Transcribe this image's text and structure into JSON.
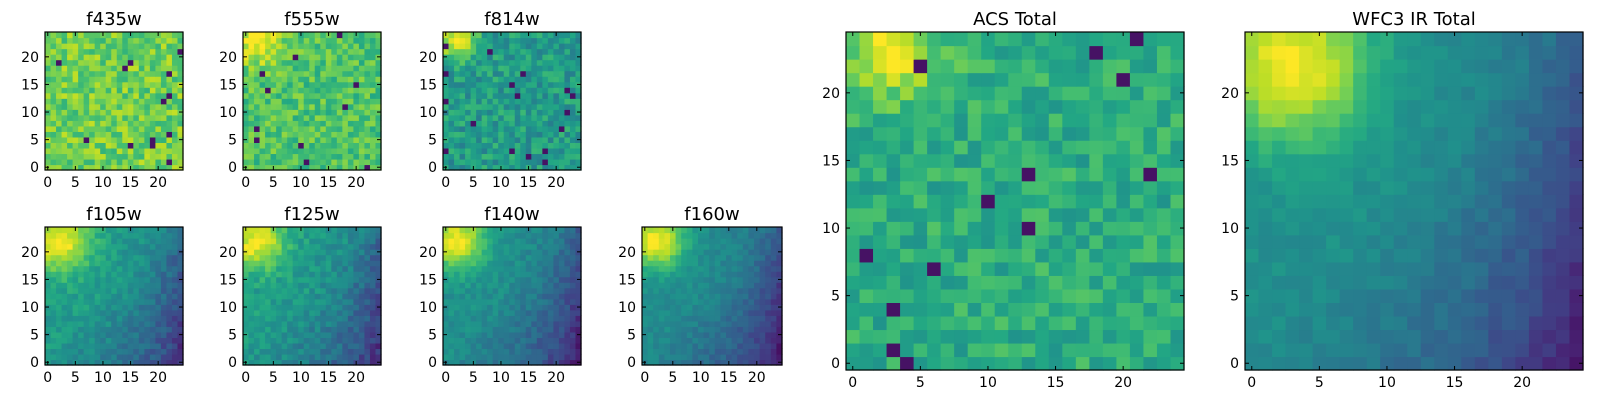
{
  "chart_data": [
    {
      "type": "heatmap",
      "id": "f435w",
      "title": "f435w",
      "colormap": "viridis",
      "grid_size": 25,
      "xlim": [
        -0.5,
        24.5
      ],
      "ylim": [
        -0.5,
        24.5
      ],
      "xticks": [
        0,
        5,
        10,
        15,
        20
      ],
      "yticks": [
        0,
        5,
        10,
        15,
        20
      ],
      "xtick_labels": [
        "0",
        "5",
        "10",
        "15",
        "20"
      ],
      "ytick_labels": [
        "0",
        "5",
        "10",
        "15",
        "20"
      ],
      "pattern": "noise",
      "mean_level": 0.78,
      "noise_level": 0.13,
      "peak": null
    },
    {
      "type": "heatmap",
      "id": "f555w",
      "title": "f555w",
      "colormap": "viridis",
      "grid_size": 25,
      "xlim": [
        -0.5,
        24.5
      ],
      "ylim": [
        -0.5,
        24.5
      ],
      "xticks": [
        0,
        5,
        10,
        15,
        20
      ],
      "yticks": [
        0,
        5,
        10,
        15,
        20
      ],
      "xtick_labels": [
        "0",
        "5",
        "10",
        "15",
        "20"
      ],
      "ytick_labels": [
        "0",
        "5",
        "10",
        "15",
        "20"
      ],
      "pattern": "noise_with_peak",
      "mean_level": 0.72,
      "noise_level": 0.12,
      "peak": {
        "x": 2,
        "y": 23,
        "amplitude": 0.3,
        "sigma": 3
      }
    },
    {
      "type": "heatmap",
      "id": "f814w",
      "title": "f814w",
      "colormap": "viridis",
      "grid_size": 25,
      "xlim": [
        -0.5,
        24.5
      ],
      "ylim": [
        -0.5,
        24.5
      ],
      "xticks": [
        0,
        5,
        10,
        15,
        20
      ],
      "yticks": [
        0,
        5,
        10,
        15,
        20
      ],
      "xtick_labels": [
        "0",
        "5",
        "10",
        "15",
        "20"
      ],
      "ytick_labels": [
        "0",
        "5",
        "10",
        "15",
        "20"
      ],
      "pattern": "noise_with_peak",
      "mean_level": 0.55,
      "noise_level": 0.13,
      "peak": {
        "x": 2,
        "y": 23,
        "amplitude": 0.45,
        "sigma": 2.5
      }
    },
    {
      "type": "heatmap",
      "id": "f105w",
      "title": "f105w",
      "colormap": "viridis",
      "grid_size": 25,
      "xlim": [
        -0.5,
        24.5
      ],
      "ylim": [
        -0.5,
        24.5
      ],
      "xticks": [
        0,
        5,
        10,
        15,
        20
      ],
      "yticks": [
        0,
        5,
        10,
        15,
        20
      ],
      "xtick_labels": [
        "0",
        "5",
        "10",
        "15",
        "20"
      ],
      "ytick_labels": [
        "0",
        "5",
        "10",
        "15",
        "20"
      ],
      "pattern": "gradient_with_peak",
      "mean_level": 0.55,
      "noise_level": 0.07,
      "peak": {
        "x": 2,
        "y": 22,
        "amplitude": 0.45,
        "sigma": 4
      }
    },
    {
      "type": "heatmap",
      "id": "f125w",
      "title": "f125w",
      "colormap": "viridis",
      "grid_size": 25,
      "xlim": [
        -0.5,
        24.5
      ],
      "ylim": [
        -0.5,
        24.5
      ],
      "xticks": [
        0,
        5,
        10,
        15,
        20
      ],
      "yticks": [
        0,
        5,
        10,
        15,
        20
      ],
      "xtick_labels": [
        "0",
        "5",
        "10",
        "15",
        "20"
      ],
      "ytick_labels": [
        "0",
        "5",
        "10",
        "15",
        "20"
      ],
      "pattern": "gradient_with_peak",
      "mean_level": 0.55,
      "noise_level": 0.08,
      "peak": {
        "x": 2,
        "y": 22,
        "amplitude": 0.45,
        "sigma": 3.5
      }
    },
    {
      "type": "heatmap",
      "id": "f140w",
      "title": "f140w",
      "colormap": "viridis",
      "grid_size": 25,
      "xlim": [
        -0.5,
        24.5
      ],
      "ylim": [
        -0.5,
        24.5
      ],
      "xticks": [
        0,
        5,
        10,
        15,
        20
      ],
      "yticks": [
        0,
        5,
        10,
        15,
        20
      ],
      "xtick_labels": [
        "0",
        "5",
        "10",
        "15",
        "20"
      ],
      "ytick_labels": [
        "0",
        "5",
        "10",
        "15",
        "20"
      ],
      "pattern": "gradient_with_peak",
      "mean_level": 0.5,
      "noise_level": 0.06,
      "peak": {
        "x": 2,
        "y": 22,
        "amplitude": 0.5,
        "sigma": 3.5
      }
    },
    {
      "type": "heatmap",
      "id": "f160w",
      "title": "f160w",
      "colormap": "viridis",
      "grid_size": 25,
      "xlim": [
        -0.5,
        24.5
      ],
      "ylim": [
        -0.5,
        24.5
      ],
      "xticks": [
        0,
        5,
        10,
        15,
        20
      ],
      "yticks": [
        0,
        5,
        10,
        15,
        20
      ],
      "xtick_labels": [
        "0",
        "5",
        "10",
        "15",
        "20"
      ],
      "ytick_labels": [
        "0",
        "5",
        "10",
        "15",
        "20"
      ],
      "pattern": "gradient_with_peak",
      "mean_level": 0.48,
      "noise_level": 0.05,
      "peak": {
        "x": 2,
        "y": 22,
        "amplitude": 0.52,
        "sigma": 3.5
      }
    },
    {
      "type": "heatmap",
      "id": "acs_total",
      "title": "ACS Total",
      "colormap": "viridis",
      "grid_size": 25,
      "xlim": [
        -0.5,
        24.5
      ],
      "ylim": [
        -0.5,
        24.5
      ],
      "xticks": [
        0,
        5,
        10,
        15,
        20
      ],
      "yticks": [
        0,
        5,
        10,
        15,
        20
      ],
      "xtick_labels": [
        "0",
        "5",
        "10",
        "15",
        "20"
      ],
      "ytick_labels": [
        "0",
        "5",
        "10",
        "15",
        "20"
      ],
      "pattern": "noise_with_peak",
      "mean_level": 0.62,
      "noise_level": 0.11,
      "peak": {
        "x": 3,
        "y": 23,
        "amplitude": 0.35,
        "sigma": 2.5
      }
    },
    {
      "type": "heatmap",
      "id": "wfc3_ir_total",
      "title": "WFC3 IR Total",
      "colormap": "viridis",
      "grid_size": 25,
      "xlim": [
        -0.5,
        24.5
      ],
      "ylim": [
        -0.5,
        24.5
      ],
      "xticks": [
        0,
        5,
        10,
        15,
        20
      ],
      "yticks": [
        0,
        5,
        10,
        15,
        20
      ],
      "xtick_labels": [
        "0",
        "5",
        "10",
        "15",
        "20"
      ],
      "ytick_labels": [
        "0",
        "5",
        "10",
        "15",
        "20"
      ],
      "pattern": "gradient_with_peak",
      "mean_level": 0.5,
      "noise_level": 0.04,
      "peak": {
        "x": 3,
        "y": 22,
        "amplitude": 0.5,
        "sigma": 4
      }
    }
  ]
}
